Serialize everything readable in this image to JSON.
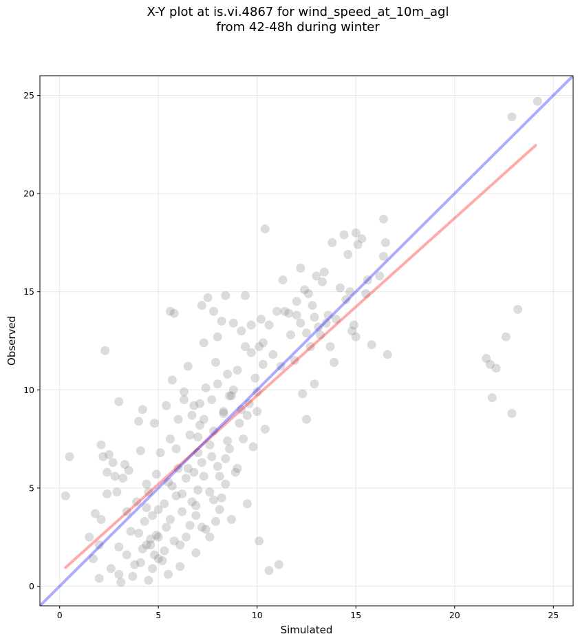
{
  "chart_data": {
    "type": "scatter",
    "title": "X-Y plot at is.vi.4867 for wind_speed_at_10m_agl",
    "subtitle": "from 42-48h during winter",
    "xlabel": "Simulated",
    "ylabel": "Observed",
    "xlim": [
      -1,
      26
    ],
    "ylim": [
      -1,
      26
    ],
    "xticks": [
      0,
      5,
      10,
      15,
      20,
      25
    ],
    "yticks": [
      0,
      5,
      10,
      15,
      20,
      25
    ],
    "grid": true,
    "point_color": "#808080",
    "series": [
      {
        "values": [
          [
            0.3,
            4.6
          ],
          [
            0.5,
            6.6
          ],
          [
            1.5,
            2.5
          ],
          [
            1.7,
            1.4
          ],
          [
            1.8,
            3.7
          ],
          [
            2.0,
            2.1
          ],
          [
            2.0,
            0.4
          ],
          [
            2.1,
            3.4
          ],
          [
            2.1,
            7.2
          ],
          [
            2.2,
            6.6
          ],
          [
            2.3,
            12.0
          ],
          [
            2.4,
            5.8
          ],
          [
            2.4,
            4.7
          ],
          [
            2.5,
            6.7
          ],
          [
            2.6,
            0.9
          ],
          [
            2.7,
            6.3
          ],
          [
            2.8,
            5.6
          ],
          [
            2.9,
            4.8
          ],
          [
            3.0,
            2.0
          ],
          [
            3.0,
            9.4
          ],
          [
            3.0,
            0.6
          ],
          [
            3.1,
            0.2
          ],
          [
            3.2,
            5.5
          ],
          [
            3.3,
            6.2
          ],
          [
            3.4,
            3.8
          ],
          [
            3.5,
            5.9
          ],
          [
            3.6,
            2.8
          ],
          [
            3.7,
            0.5
          ],
          [
            3.9,
            4.3
          ],
          [
            4.0,
            2.7
          ],
          [
            4.0,
            8.4
          ],
          [
            4.1,
            6.9
          ],
          [
            4.1,
            1.2
          ],
          [
            4.2,
            9.0
          ],
          [
            4.3,
            3.3
          ],
          [
            4.4,
            2.1
          ],
          [
            4.4,
            5.2
          ],
          [
            4.5,
            4.8
          ],
          [
            4.5,
            0.3
          ],
          [
            4.6,
            2.4
          ],
          [
            4.7,
            3.6
          ],
          [
            4.8,
            8.3
          ],
          [
            4.8,
            1.6
          ],
          [
            4.9,
            5.7
          ],
          [
            5.0,
            2.5
          ],
          [
            5.0,
            3.9
          ],
          [
            5.1,
            6.8
          ],
          [
            5.2,
            1.3
          ],
          [
            5.3,
            4.2
          ],
          [
            5.4,
            9.2
          ],
          [
            5.5,
            5.3
          ],
          [
            5.5,
            0.6
          ],
          [
            5.6,
            14.0
          ],
          [
            5.6,
            7.5
          ],
          [
            5.7,
            10.5
          ],
          [
            5.8,
            2.3
          ],
          [
            5.8,
            13.9
          ],
          [
            5.9,
            4.6
          ],
          [
            6.0,
            6.0
          ],
          [
            6.0,
            8.5
          ],
          [
            6.1,
            1.0
          ],
          [
            6.2,
            3.8
          ],
          [
            6.3,
            9.9
          ],
          [
            6.4,
            5.5
          ],
          [
            6.4,
            2.5
          ],
          [
            6.5,
            11.2
          ],
          [
            6.6,
            7.7
          ],
          [
            6.7,
            4.3
          ],
          [
            6.8,
            9.2
          ],
          [
            6.9,
            1.7
          ],
          [
            7.0,
            6.8
          ],
          [
            7.0,
            4.9
          ],
          [
            7.1,
            8.2
          ],
          [
            7.2,
            14.3
          ],
          [
            7.2,
            3.0
          ],
          [
            7.3,
            12.4
          ],
          [
            7.3,
            5.6
          ],
          [
            7.4,
            10.1
          ],
          [
            7.5,
            14.7
          ],
          [
            7.6,
            7.2
          ],
          [
            7.6,
            2.5
          ],
          [
            7.7,
            9.5
          ],
          [
            7.8,
            4.4
          ],
          [
            7.8,
            14.0
          ],
          [
            7.9,
            11.4
          ],
          [
            8.0,
            6.1
          ],
          [
            8.0,
            12.7
          ],
          [
            8.1,
            3.9
          ],
          [
            8.2,
            13.5
          ],
          [
            8.3,
            8.8
          ],
          [
            8.4,
            14.8
          ],
          [
            8.4,
            5.2
          ],
          [
            8.5,
            10.8
          ],
          [
            8.6,
            7.0
          ],
          [
            8.7,
            9.7
          ],
          [
            8.8,
            13.4
          ],
          [
            8.9,
            5.8
          ],
          [
            9.0,
            11.0
          ],
          [
            9.1,
            8.3
          ],
          [
            9.2,
            13.0
          ],
          [
            9.3,
            7.5
          ],
          [
            9.4,
            14.8
          ],
          [
            9.4,
            12.2
          ],
          [
            9.5,
            4.2
          ],
          [
            9.6,
            9.3
          ],
          [
            9.7,
            13.3
          ],
          [
            9.8,
            7.1
          ],
          [
            9.9,
            10.6
          ],
          [
            10.0,
            8.9
          ],
          [
            10.1,
            12.2
          ],
          [
            10.1,
            2.3
          ],
          [
            10.2,
            13.6
          ],
          [
            10.3,
            11.3
          ],
          [
            10.4,
            18.2
          ],
          [
            10.4,
            8.0
          ],
          [
            10.6,
            0.8
          ],
          [
            10.8,
            11.8
          ],
          [
            11.0,
            14.0
          ],
          [
            11.1,
            1.1
          ],
          [
            11.3,
            15.6
          ],
          [
            11.6,
            13.9
          ],
          [
            11.9,
            11.5
          ],
          [
            12.0,
            13.8
          ],
          [
            12.2,
            16.2
          ],
          [
            12.3,
            9.8
          ],
          [
            12.4,
            15.1
          ],
          [
            12.5,
            8.5
          ],
          [
            12.7,
            12.2
          ],
          [
            12.8,
            14.3
          ],
          [
            12.9,
            10.3
          ],
          [
            13.0,
            15.8
          ],
          [
            13.2,
            12.8
          ],
          [
            13.4,
            16.0
          ],
          [
            13.5,
            13.4
          ],
          [
            13.7,
            12.2
          ],
          [
            13.8,
            17.5
          ],
          [
            13.9,
            11.4
          ],
          [
            14.0,
            13.6
          ],
          [
            14.2,
            15.2
          ],
          [
            14.4,
            17.9
          ],
          [
            14.6,
            16.9
          ],
          [
            14.7,
            15.0
          ],
          [
            14.8,
            13.0
          ],
          [
            15.0,
            18.0
          ],
          [
            15.0,
            12.7
          ],
          [
            15.1,
            17.4
          ],
          [
            15.3,
            17.7
          ],
          [
            15.5,
            14.9
          ],
          [
            15.6,
            15.6
          ],
          [
            15.8,
            12.3
          ],
          [
            16.2,
            15.8
          ],
          [
            16.4,
            18.7
          ],
          [
            16.4,
            16.8
          ],
          [
            16.5,
            17.5
          ],
          [
            16.6,
            11.8
          ],
          [
            21.6,
            11.6
          ],
          [
            21.8,
            11.3
          ],
          [
            21.9,
            9.6
          ],
          [
            22.1,
            11.1
          ],
          [
            22.6,
            12.7
          ],
          [
            22.9,
            8.8
          ],
          [
            22.9,
            23.9
          ],
          [
            23.2,
            14.1
          ],
          [
            24.2,
            24.7
          ],
          [
            4.6,
            2.1
          ],
          [
            4.9,
            2.6
          ],
          [
            5.3,
            1.8
          ],
          [
            4.2,
            1.9
          ],
          [
            5.6,
            3.4
          ],
          [
            6.1,
            2.1
          ],
          [
            3.8,
            1.1
          ],
          [
            4.7,
            0.9
          ],
          [
            5.0,
            1.4
          ],
          [
            3.4,
            1.6
          ],
          [
            6.6,
            3.1
          ],
          [
            7.4,
            2.9
          ],
          [
            6.9,
            3.6
          ],
          [
            7.9,
            3.3
          ],
          [
            6.2,
            4.7
          ],
          [
            5.4,
            3.0
          ],
          [
            4.4,
            4.0
          ],
          [
            5.7,
            5.1
          ],
          [
            6.8,
            5.8
          ],
          [
            7.2,
            6.3
          ],
          [
            7.6,
            4.8
          ],
          [
            8.1,
            5.6
          ],
          [
            8.4,
            6.5
          ],
          [
            6.5,
            6.0
          ],
          [
            5.9,
            7.0
          ],
          [
            7.0,
            7.6
          ],
          [
            7.8,
            7.9
          ],
          [
            8.3,
            8.9
          ],
          [
            8.6,
            9.7
          ],
          [
            7.3,
            8.5
          ],
          [
            6.7,
            8.7
          ],
          [
            6.3,
            9.5
          ],
          [
            7.1,
            9.3
          ],
          [
            8.0,
            10.3
          ],
          [
            8.8,
            10.0
          ],
          [
            9.2,
            9.0
          ],
          [
            8.5,
            7.4
          ],
          [
            9.0,
            6.0
          ],
          [
            7.7,
            6.6
          ],
          [
            6.9,
            4.1
          ],
          [
            8.2,
            4.5
          ],
          [
            8.7,
            3.4
          ],
          [
            9.5,
            8.7
          ],
          [
            10.0,
            9.9
          ],
          [
            9.7,
            11.9
          ],
          [
            10.3,
            12.4
          ],
          [
            10.6,
            13.3
          ],
          [
            11.4,
            14.0
          ],
          [
            12.0,
            14.5
          ],
          [
            12.6,
            14.9
          ],
          [
            12.2,
            13.4
          ],
          [
            13.1,
            13.2
          ],
          [
            11.7,
            12.8
          ],
          [
            11.2,
            11.2
          ],
          [
            12.5,
            12.9
          ],
          [
            13.3,
            15.5
          ],
          [
            14.5,
            14.6
          ],
          [
            14.9,
            13.3
          ],
          [
            13.6,
            13.8
          ],
          [
            12.9,
            13.7
          ]
        ]
      }
    ],
    "lines": [
      {
        "color": "#ff0000",
        "values": [
          [
            0.3,
            0.95
          ],
          [
            24.1,
            22.45
          ]
        ]
      },
      {
        "color": "#0000ff",
        "values": [
          [
            -1,
            -1
          ],
          [
            26,
            26
          ]
        ]
      }
    ]
  }
}
